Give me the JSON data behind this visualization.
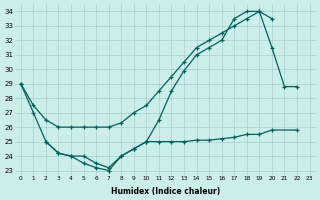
{
  "xlabel": "Humidex (Indice chaleur)",
  "bg_color": "#cceee8",
  "grid_color": "#aacccc",
  "line_color": "#006060",
  "ylim_low": 22.7,
  "ylim_high": 34.5,
  "yticks": [
    23,
    24,
    25,
    26,
    27,
    28,
    29,
    30,
    31,
    32,
    33,
    34
  ],
  "curve1_x": [
    0,
    1,
    2,
    3,
    4,
    5,
    6,
    7,
    8,
    9,
    10,
    11,
    12,
    13,
    14,
    15,
    16,
    17,
    18,
    19,
    20,
    21,
    22
  ],
  "curve1_y": [
    29.0,
    27.0,
    25.0,
    24.2,
    24.0,
    23.5,
    23.2,
    23.0,
    24.0,
    24.5,
    25.0,
    26.5,
    28.5,
    29.9,
    31.0,
    31.5,
    32.0,
    33.5,
    34.0,
    34.0,
    31.5,
    28.8,
    28.8
  ],
  "curve2_x": [
    0,
    1,
    2,
    3,
    4,
    5,
    6,
    7,
    8,
    9,
    10,
    11,
    12,
    13,
    14,
    15,
    16,
    17,
    18,
    19,
    20
  ],
  "curve2_y": [
    29.0,
    27.5,
    26.5,
    26.0,
    26.0,
    26.0,
    26.0,
    26.0,
    26.3,
    27.0,
    27.5,
    28.5,
    29.5,
    30.5,
    31.5,
    32.0,
    32.5,
    33.0,
    33.5,
    34.0,
    33.5
  ],
  "curve3_x": [
    2,
    3,
    4,
    5,
    6,
    7,
    8,
    9,
    10,
    11,
    12,
    13,
    14,
    15,
    16,
    17,
    18,
    19,
    20,
    22
  ],
  "curve3_y": [
    25.0,
    24.2,
    24.0,
    24.0,
    23.5,
    23.2,
    24.0,
    24.5,
    25.0,
    25.0,
    25.0,
    25.0,
    25.1,
    25.1,
    25.2,
    25.3,
    25.5,
    25.5,
    25.8,
    25.8
  ]
}
